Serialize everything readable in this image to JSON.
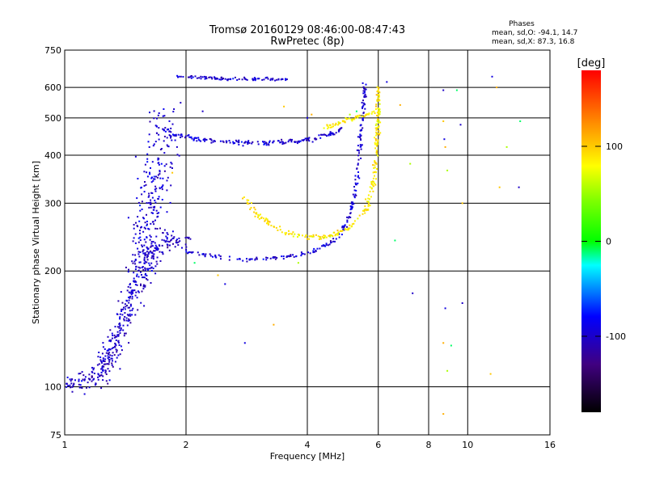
{
  "chart_data": {
    "type": "scatter",
    "title": "Tromsø 20160129 08:46:00-08:47:43",
    "subtitle": "RwPretec (8p)",
    "xlabel": "Frequency [MHz]",
    "ylabel": "Stationary phase Virtual Height [km]",
    "x_scale": "log",
    "y_scale": "log",
    "xlim": [
      1,
      16
    ],
    "ylim": [
      75,
      750
    ],
    "x_ticks": [
      1,
      2,
      4,
      6,
      8,
      10,
      16
    ],
    "y_ticks": [
      75,
      100,
      200,
      300,
      400,
      500,
      600,
      750
    ],
    "x_gridlines": [
      1,
      2,
      4,
      6,
      8,
      10,
      16
    ],
    "y_gridlines": [
      100,
      200,
      300,
      400,
      500,
      600,
      750
    ],
    "grid": true,
    "stats": {
      "heading": "Phases",
      "line_o": "mean, sd,O: -94.1, 14.7",
      "line_x": "mean, sd,X:  87.3, 16.8"
    },
    "colorbar": {
      "label": "[deg]",
      "range": [
        -180,
        180
      ],
      "ticks": [
        100,
        0,
        -100
      ],
      "colors": [
        "#ff0000",
        "#ff8000",
        "#ffff00",
        "#00ff00",
        "#00ffff",
        "#0000ff",
        "#400080",
        "#000000"
      ]
    },
    "series": [
      {
        "kind": "band",
        "comment": "O-mode F2 trace",
        "color_phase": -95,
        "spread": 0.012,
        "points": [
          [
            1.7,
            480
          ],
          [
            1.9,
            450
          ],
          [
            2.2,
            438
          ],
          [
            2.6,
            432
          ],
          [
            3.0,
            430
          ],
          [
            3.5,
            432
          ],
          [
            4.0,
            438
          ],
          [
            4.5,
            450
          ],
          [
            4.9,
            470
          ]
        ],
        "n": 180
      },
      {
        "kind": "band",
        "comment": "O-mode F1 trace",
        "color_phase": -95,
        "spread": 0.01,
        "points": [
          [
            2.0,
            225
          ],
          [
            2.4,
            218
          ],
          [
            2.8,
            214
          ],
          [
            3.2,
            215
          ],
          [
            3.8,
            220
          ],
          [
            4.3,
            228
          ],
          [
            4.8,
            245
          ],
          [
            5.1,
            280
          ],
          [
            5.3,
            340
          ],
          [
            5.4,
            420
          ],
          [
            5.5,
            520
          ],
          [
            5.55,
            620
          ]
        ],
        "n": 230
      },
      {
        "kind": "band",
        "comment": "O-mode low trace",
        "color_phase": -100,
        "spread": 0.05,
        "points": [
          [
            1.0,
            102
          ],
          [
            1.2,
            104
          ],
          [
            1.3,
            120
          ],
          [
            1.4,
            150
          ],
          [
            1.5,
            180
          ],
          [
            1.6,
            210
          ],
          [
            1.7,
            230
          ],
          [
            1.8,
            240
          ],
          [
            2.0,
            240
          ]
        ],
        "n": 420
      },
      {
        "kind": "band",
        "comment": "O-mode spread column",
        "color_phase": -95,
        "spread": 0.08,
        "points": [
          [
            1.55,
            200
          ],
          [
            1.6,
            260
          ],
          [
            1.65,
            320
          ],
          [
            1.7,
            380
          ],
          [
            1.75,
            440
          ],
          [
            1.8,
            500
          ]
        ],
        "n": 260
      },
      {
        "kind": "band",
        "comment": "O-mode top echo",
        "color_phase": -95,
        "spread": 0.008,
        "points": [
          [
            1.9,
            640
          ],
          [
            2.3,
            634
          ],
          [
            2.7,
            630
          ],
          [
            3.1,
            632
          ],
          [
            3.6,
            628
          ]
        ],
        "n": 90
      },
      {
        "kind": "band",
        "comment": "X-mode F1 trace",
        "color_phase": 88,
        "spread": 0.012,
        "points": [
          [
            2.8,
            310
          ],
          [
            3.0,
            280
          ],
          [
            3.3,
            260
          ],
          [
            3.7,
            248
          ],
          [
            4.2,
            244
          ],
          [
            4.7,
            248
          ],
          [
            5.2,
            262
          ],
          [
            5.6,
            290
          ],
          [
            5.85,
            340
          ],
          [
            5.95,
            420
          ],
          [
            6.0,
            520
          ],
          [
            6.0,
            600
          ]
        ],
        "n": 260
      },
      {
        "kind": "band",
        "comment": "X-mode F2 trace",
        "color_phase": 85,
        "spread": 0.012,
        "points": [
          [
            4.4,
            472
          ],
          [
            4.8,
            485
          ],
          [
            5.2,
            500
          ],
          [
            5.6,
            510
          ],
          [
            6.0,
            520
          ]
        ],
        "n": 60
      },
      {
        "kind": "scatter",
        "comment": "sparse noise",
        "color_phase": 0,
        "spread": 0.0,
        "points": [
          [
            8.7,
            590
          ],
          [
            8.7,
            490
          ],
          [
            8.75,
            440
          ],
          [
            8.8,
            420
          ],
          [
            8.9,
            365
          ],
          [
            9.4,
            590
          ],
          [
            9.6,
            480
          ],
          [
            9.7,
            300
          ],
          [
            11.5,
            640
          ],
          [
            11.8,
            600
          ],
          [
            12.5,
            420
          ],
          [
            13.5,
            490
          ],
          [
            13.4,
            330
          ],
          [
            12.0,
            330
          ],
          [
            8.8,
            160
          ],
          [
            8.7,
            130
          ],
          [
            8.9,
            110
          ],
          [
            9.1,
            128
          ],
          [
            9.7,
            165
          ],
          [
            11.4,
            108
          ],
          [
            6.3,
            620
          ],
          [
            6.8,
            540
          ],
          [
            7.2,
            380
          ],
          [
            6.6,
            240
          ],
          [
            7.3,
            175
          ],
          [
            2.4,
            195
          ],
          [
            2.5,
            185
          ],
          [
            3.3,
            145
          ],
          [
            3.8,
            210
          ],
          [
            2.1,
            210
          ],
          [
            2.2,
            520
          ],
          [
            3.5,
            535
          ],
          [
            4.0,
            500
          ],
          [
            4.1,
            510
          ],
          [
            5.1,
            510
          ],
          [
            5.3,
            520
          ],
          [
            1.9,
            420
          ],
          [
            1.85,
            360
          ],
          [
            2.8,
            130
          ],
          [
            8.7,
            85
          ]
        ],
        "n": 0
      }
    ]
  }
}
